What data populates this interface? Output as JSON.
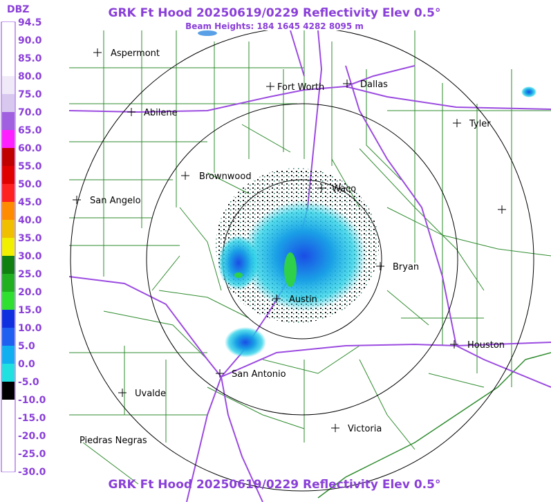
{
  "header": {
    "title": "GRK Ft Hood 20250619/0229 Reflectivity Elev 0.5°",
    "subtitle": "Beam Heights: 184 1645 4282 8095 m",
    "footer_title": "GRK Ft Hood 20250619/0229 Reflectivity Elev 0.5°"
  },
  "legend": {
    "title": "DBZ",
    "labels": [
      "94.5",
      "90.0",
      "85.0",
      "80.0",
      "75.0",
      "70.0",
      "65.0",
      "60.0",
      "55.0",
      "50.0",
      "45.0",
      "40.0",
      "35.0",
      "30.0",
      "25.0",
      "20.0",
      "15.0",
      "10.0",
      "5.0",
      "0.0",
      "-5.0",
      "-10.0",
      "-15.0",
      "-20.0",
      "-25.0",
      "-30.0"
    ]
  },
  "cities": [
    {
      "name": "Aspermont"
    },
    {
      "name": "Fort Worth"
    },
    {
      "name": "Dallas"
    },
    {
      "name": "Abilene"
    },
    {
      "name": "Tyler"
    },
    {
      "name": "Brownwood"
    },
    {
      "name": "Waco"
    },
    {
      "name": "San Angelo"
    },
    {
      "name": "Bryan"
    },
    {
      "name": "Austin"
    },
    {
      "name": "Houston"
    },
    {
      "name": "San Antonio"
    },
    {
      "name": "Uvalde"
    },
    {
      "name": "Victoria"
    },
    {
      "name": "Piedras Negras"
    }
  ]
}
